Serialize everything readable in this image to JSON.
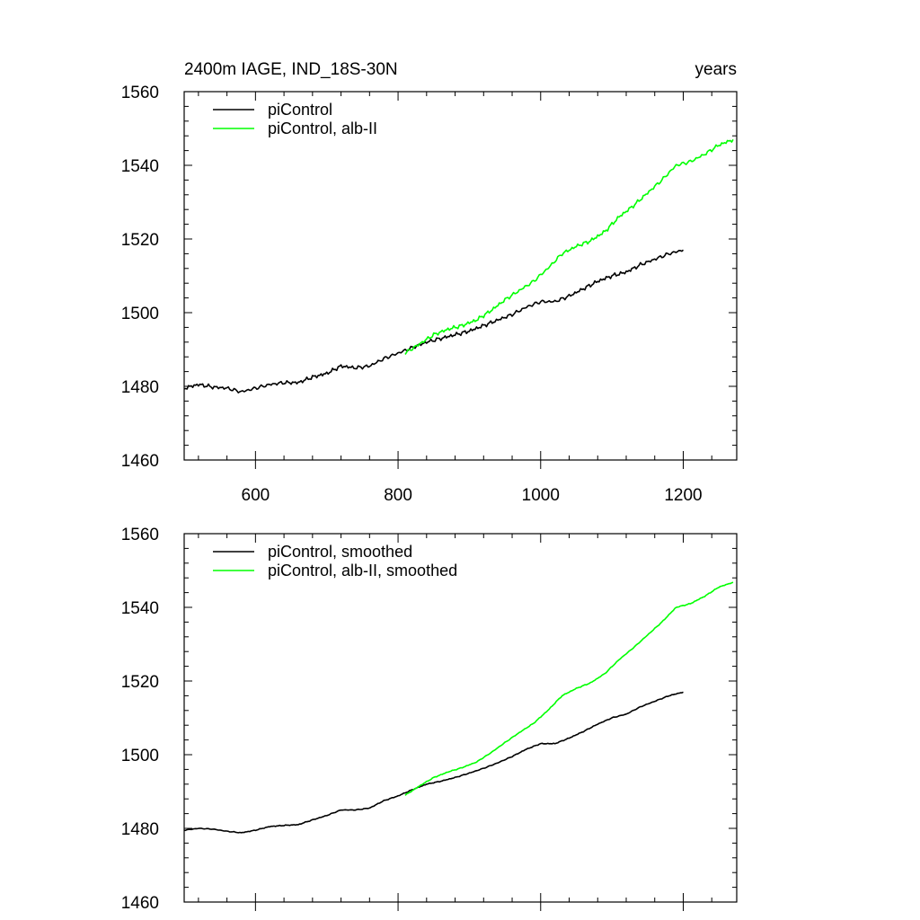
{
  "figure": {
    "title_left": "2400m IAGE, IND_18S-30N",
    "title_right": "years"
  },
  "chart_data": [
    {
      "type": "line",
      "xlim": [
        500,
        1275
      ],
      "ylim": [
        1460,
        1560
      ],
      "x_ticks": [
        600,
        800,
        1000,
        1200
      ],
      "x_tick_labels": [
        "600",
        "800",
        "1000",
        "1200"
      ],
      "y_ticks": [
        1460,
        1480,
        1500,
        1520,
        1540,
        1560
      ],
      "y_tick_labels": [
        "1460",
        "1480",
        "1500",
        "1520",
        "1540",
        "1560"
      ],
      "legend_position": "top-left",
      "series": [
        {
          "name": "piControl",
          "color": "#000000",
          "x": [
            500,
            520,
            540,
            560,
            580,
            600,
            620,
            640,
            660,
            680,
            700,
            720,
            740,
            760,
            780,
            800,
            820,
            840,
            860,
            880,
            900,
            920,
            940,
            960,
            980,
            1000,
            1020,
            1040,
            1060,
            1080,
            1100,
            1120,
            1140,
            1160,
            1180,
            1200
          ],
          "y": [
            1479.5,
            1480.5,
            1479.8,
            1479.5,
            1478.5,
            1479.5,
            1480.5,
            1481.0,
            1481.0,
            1482.5,
            1483.5,
            1485.5,
            1485.0,
            1485.5,
            1487.5,
            1489.0,
            1490.5,
            1492.0,
            1493.0,
            1494.0,
            1495.0,
            1496.5,
            1498.0,
            1499.5,
            1501.5,
            1503.0,
            1503.0,
            1504.5,
            1506.5,
            1508.5,
            1510.0,
            1511.0,
            1513.0,
            1514.5,
            1516.0,
            1517.0
          ]
        },
        {
          "name": "piControl, alb-II",
          "color": "#00ff00",
          "x": [
            810,
            830,
            850,
            870,
            890,
            910,
            930,
            950,
            970,
            990,
            1010,
            1030,
            1050,
            1070,
            1090,
            1110,
            1130,
            1150,
            1170,
            1190,
            1210,
            1230,
            1250,
            1270
          ],
          "y": [
            1489.0,
            1491.5,
            1494.0,
            1495.5,
            1496.5,
            1498.0,
            1500.5,
            1503.5,
            1506.0,
            1508.5,
            1512.0,
            1516.0,
            1518.0,
            1519.5,
            1522.0,
            1526.0,
            1529.0,
            1532.5,
            1536.0,
            1540.0,
            1541.0,
            1543.0,
            1545.5,
            1547.0
          ]
        }
      ]
    },
    {
      "type": "line",
      "xlim": [
        500,
        1275
      ],
      "ylim": [
        1460,
        1560
      ],
      "y_ticks": [
        1460,
        1480,
        1500,
        1520,
        1540,
        1560
      ],
      "y_tick_labels": [
        "1460",
        "1480",
        "1500",
        "1520",
        "1540",
        "1560"
      ],
      "legend_position": "top-left",
      "series": [
        {
          "name": "piControl, smoothed",
          "color": "#000000",
          "x": [
            500,
            520,
            540,
            560,
            580,
            600,
            620,
            640,
            660,
            680,
            700,
            720,
            740,
            760,
            780,
            800,
            820,
            840,
            860,
            880,
            900,
            920,
            940,
            960,
            980,
            1000,
            1020,
            1040,
            1060,
            1080,
            1100,
            1120,
            1140,
            1160,
            1180,
            1200
          ],
          "y": [
            1479.5,
            1480.0,
            1479.8,
            1479.2,
            1478.8,
            1479.5,
            1480.5,
            1480.8,
            1481.0,
            1482.3,
            1483.5,
            1485.0,
            1485.0,
            1485.5,
            1487.5,
            1488.8,
            1490.5,
            1492.0,
            1492.8,
            1493.8,
            1495.0,
            1496.3,
            1497.8,
            1499.5,
            1501.5,
            1503.0,
            1503.0,
            1504.5,
            1506.3,
            1508.3,
            1510.0,
            1511.0,
            1513.0,
            1514.5,
            1516.0,
            1517.0
          ]
        },
        {
          "name": "piControl, alb-II, smoothed",
          "color": "#00ff00",
          "x": [
            810,
            830,
            850,
            870,
            890,
            910,
            930,
            950,
            970,
            990,
            1010,
            1030,
            1050,
            1070,
            1090,
            1110,
            1130,
            1150,
            1170,
            1190,
            1210,
            1230,
            1250,
            1270
          ],
          "y": [
            1489.0,
            1491.5,
            1493.8,
            1495.3,
            1496.5,
            1498.0,
            1500.5,
            1503.3,
            1506.0,
            1508.5,
            1512.0,
            1516.0,
            1518.0,
            1519.5,
            1522.0,
            1525.8,
            1529.0,
            1532.5,
            1536.0,
            1540.0,
            1541.0,
            1543.0,
            1545.5,
            1546.8
          ]
        }
      ]
    }
  ]
}
